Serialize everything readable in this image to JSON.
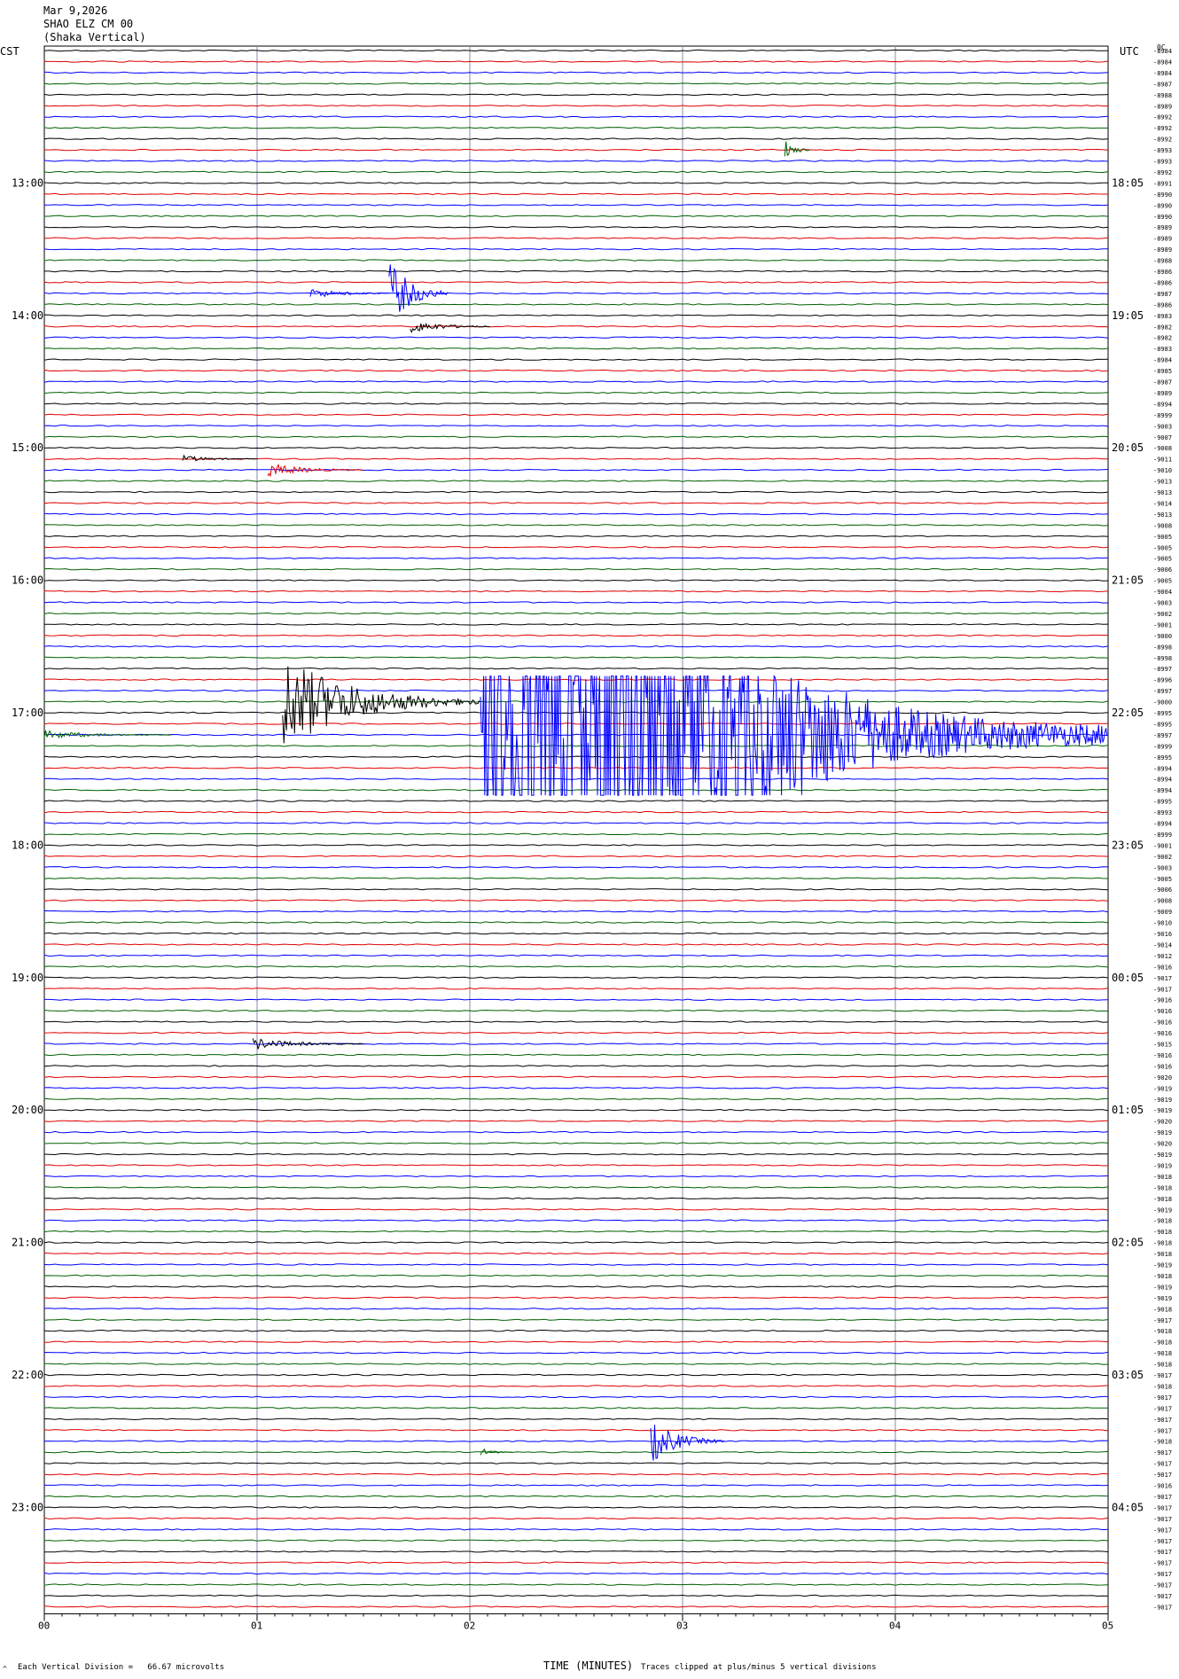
{
  "header": {
    "date": "Mar 9,2026",
    "station": "SHAO ELZ CM 00",
    "location": "(Shaka Vertical)"
  },
  "left_tz": "CST",
  "right_tz": "UTC",
  "right_top_code": "0C",
  "footer": {
    "scale_note": "Each Vertical Division =   66.67 microvolts",
    "xlabel": "TIME (MINUTES)",
    "clip_note": "Traces clipped at plus/minus 5 vertical divisions",
    "corner_mark": "^"
  },
  "chart_data": {
    "type": "line",
    "title": "SHAO ELZ CM 00 (Shaka Vertical)",
    "xlabel": "TIME (MINUTES)",
    "x_ticks": [
      "00",
      "01",
      "02",
      "03",
      "04",
      "05"
    ],
    "xlim": [
      0,
      5
    ],
    "trace_colors": [
      "#000000",
      "#e00000",
      "#0000ff",
      "#006000"
    ],
    "left_hour_labels": [
      "13:00",
      "14:00",
      "15:00",
      "16:00",
      "17:00",
      "18:00",
      "19:00",
      "20:00",
      "21:00",
      "22:00",
      "23:00"
    ],
    "right_hour_labels": [
      "18:05",
      "19:05",
      "20:05",
      "21:05",
      "22:05",
      "23:05",
      "00:05",
      "01:05",
      "02:05",
      "03:05",
      "04:05"
    ],
    "trace_values": [
      "-8984",
      "-8984",
      "-8984",
      "-8987",
      "-8988",
      "-8989",
      "-8992",
      "-8992",
      "-8992",
      "-8993",
      "-8993",
      "-8992",
      "-8991",
      "-8990",
      "-8990",
      "-8990",
      "-8989",
      "-8989",
      "-8989",
      "-8988",
      "-8986",
      "-8986",
      "-8987",
      "-8986",
      "-8983",
      "-8982",
      "-8982",
      "-8983",
      "-8984",
      "-8985",
      "-8987",
      "-8989",
      "-8994",
      "-8999",
      "-9003",
      "-9007",
      "-9008",
      "-9011",
      "-9010",
      "-9013",
      "-9013",
      "-9014",
      "-9013",
      "-9008",
      "-9005",
      "-9005",
      "-9005",
      "-9006",
      "-9005",
      "-9004",
      "-9003",
      "-9002",
      "-9001",
      "-9000",
      "-8998",
      "-8998",
      "-8997",
      "-8996",
      "-8997",
      "-9000",
      "-8995",
      "-8995",
      "-8997",
      "-8999",
      "-8995",
      "-8994",
      "-8994",
      "-8994",
      "-8995",
      "-8993",
      "-8994",
      "-8999",
      "-9001",
      "-9002",
      "-9003",
      "-9005",
      "-9006",
      "-9008",
      "-9009",
      "-9010",
      "-9016",
      "-9014",
      "-9012",
      "-9016",
      "-9017",
      "-9017",
      "-9016",
      "-9016",
      "-9016",
      "-9016",
      "-9015",
      "-9016",
      "-9016",
      "-9020",
      "-9019",
      "-9019",
      "-9019",
      "-9020",
      "-9019",
      "-9020",
      "-9019",
      "-9019",
      "-9018",
      "-9018",
      "-9018",
      "-9019",
      "-9018",
      "-9018",
      "-9018",
      "-9018",
      "-9019",
      "-9018",
      "-9019",
      "-9019",
      "-9018",
      "-9017",
      "-9018",
      "-9018",
      "-9018",
      "-9018",
      "-9017",
      "-9018",
      "-9017",
      "-9017",
      "-9017",
      "-9017",
      "-9018",
      "-9017",
      "-9017",
      "-9017",
      "-9016",
      "-9017",
      "-9017",
      "-9017",
      "-9017",
      "-9017",
      "-9017",
      "-9017",
      "-9017",
      "-9017",
      "-9017",
      "-9017"
    ]
  }
}
